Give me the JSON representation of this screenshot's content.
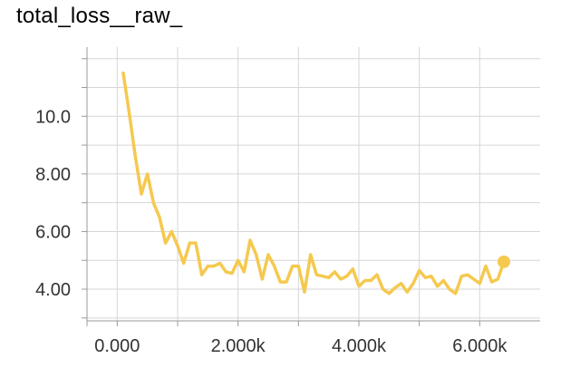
{
  "chart_data": {
    "type": "line",
    "title": "total_loss__raw_",
    "xlabel": "",
    "ylabel": "",
    "xlim": [
      -500,
      7000
    ],
    "ylim": [
      2.9,
      12.4
    ],
    "x_ticks": [
      0,
      1000,
      2000,
      3000,
      4000,
      5000,
      6000
    ],
    "x_tick_labels": [
      "0.000",
      "2.000k",
      "4.000k",
      "6.000k"
    ],
    "x_tick_label_values": [
      0,
      2000,
      4000,
      6000
    ],
    "y_ticks": [
      3,
      4,
      5,
      6,
      7,
      8,
      9,
      10,
      11,
      12
    ],
    "y_tick_labels": [
      "4.00",
      "6.00",
      "8.00",
      "10.0"
    ],
    "y_tick_label_values": [
      4,
      6,
      8,
      10
    ],
    "grid": true,
    "series": [
      {
        "color": "#f5c94f",
        "end_marker": true,
        "x": [
          100,
          200,
          300,
          400,
          500,
          600,
          700,
          800,
          900,
          1000,
          1100,
          1200,
          1300,
          1400,
          1500,
          1600,
          1700,
          1800,
          1900,
          2000,
          2100,
          2200,
          2300,
          2400,
          2500,
          2600,
          2700,
          2800,
          2900,
          3000,
          3100,
          3200,
          3300,
          3400,
          3500,
          3600,
          3700,
          3800,
          3900,
          4000,
          4100,
          4200,
          4300,
          4400,
          4500,
          4600,
          4700,
          4800,
          4900,
          5000,
          5100,
          5200,
          5300,
          5400,
          5500,
          5600,
          5700,
          5800,
          5900,
          6000,
          6100,
          6200,
          6300,
          6400
        ],
        "values": [
          11.5,
          10.1,
          8.6,
          7.3,
          8.0,
          7.0,
          6.5,
          5.6,
          6.0,
          5.5,
          4.9,
          5.6,
          5.6,
          4.5,
          4.8,
          4.8,
          4.9,
          4.6,
          4.55,
          5.0,
          4.6,
          5.7,
          5.2,
          4.35,
          5.2,
          4.8,
          4.25,
          4.25,
          4.8,
          4.8,
          3.9,
          5.2,
          4.5,
          4.45,
          4.4,
          4.6,
          4.35,
          4.45,
          4.7,
          4.1,
          4.3,
          4.3,
          4.5,
          4.0,
          3.85,
          4.05,
          4.2,
          3.9,
          4.2,
          4.65,
          4.4,
          4.45,
          4.1,
          4.3,
          4.0,
          3.85,
          4.45,
          4.5,
          4.35,
          4.2,
          4.8,
          4.25,
          4.35,
          4.95
        ]
      }
    ]
  }
}
